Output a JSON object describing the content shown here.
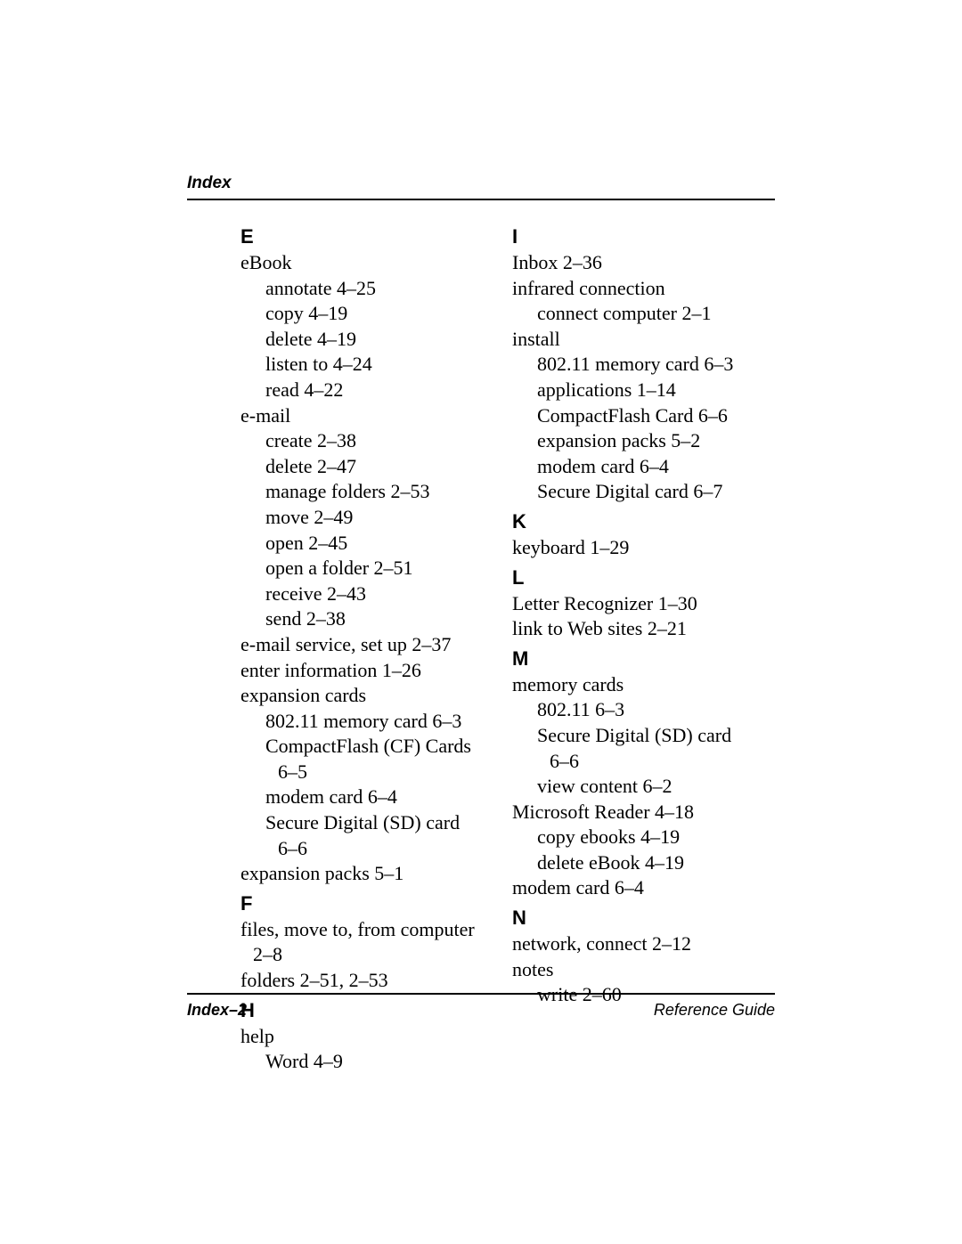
{
  "header": "Index",
  "footer_left": "Index–2",
  "footer_right": "Reference Guide",
  "left": [
    {
      "type": "letter",
      "text": "E"
    },
    {
      "type": "entry",
      "text": "eBook"
    },
    {
      "type": "l1",
      "text": "annotate 4–25"
    },
    {
      "type": "l1",
      "text": "copy 4–19"
    },
    {
      "type": "l1",
      "text": "delete 4–19"
    },
    {
      "type": "l1",
      "text": "listen to 4–24"
    },
    {
      "type": "l1",
      "text": "read 4–22"
    },
    {
      "type": "entry",
      "text": "e-mail"
    },
    {
      "type": "l1",
      "text": "create 2–38"
    },
    {
      "type": "l1",
      "text": "delete 2–47"
    },
    {
      "type": "l1",
      "text": "manage folders 2–53"
    },
    {
      "type": "l1",
      "text": "move 2–49"
    },
    {
      "type": "l1",
      "text": "open 2–45"
    },
    {
      "type": "l1",
      "text": "open a folder 2–51"
    },
    {
      "type": "l1",
      "text": "receive 2–43"
    },
    {
      "type": "l1",
      "text": "send 2–38"
    },
    {
      "type": "entry",
      "text": "e-mail service, set up 2–37"
    },
    {
      "type": "entry",
      "text": "enter information 1–26"
    },
    {
      "type": "entry",
      "text": "expansion cards"
    },
    {
      "type": "l1",
      "text": "802.11 memory card 6–3"
    },
    {
      "type": "l1",
      "text": "CompactFlash (CF) Cards"
    },
    {
      "type": "l2",
      "text": "6–5"
    },
    {
      "type": "l1",
      "text": "modem card 6–4"
    },
    {
      "type": "l1",
      "text": "Secure Digital (SD) card"
    },
    {
      "type": "l2",
      "text": "6–6"
    },
    {
      "type": "entry",
      "text": "expansion packs 5–1"
    },
    {
      "type": "letter",
      "text": "F"
    },
    {
      "type": "entry",
      "text": "files, move to, from computer"
    },
    {
      "type": "l2p",
      "text": "2–8"
    },
    {
      "type": "entry",
      "text": "folders 2–51, 2–53"
    },
    {
      "type": "letter",
      "text": "H"
    },
    {
      "type": "entry",
      "text": "help"
    },
    {
      "type": "l1",
      "text": "Word 4–9"
    }
  ],
  "right": [
    {
      "type": "letter",
      "text": "I"
    },
    {
      "type": "entry",
      "text": "Inbox 2–36"
    },
    {
      "type": "entry",
      "text": "infrared connection"
    },
    {
      "type": "l1",
      "text": "connect computer 2–1"
    },
    {
      "type": "entry",
      "text": "install"
    },
    {
      "type": "l1",
      "text": "802.11 memory card 6–3"
    },
    {
      "type": "l1",
      "text": "applications 1–14"
    },
    {
      "type": "l1",
      "text": "CompactFlash Card 6–6"
    },
    {
      "type": "l1",
      "text": "expansion packs 5–2"
    },
    {
      "type": "l1",
      "text": "modem card 6–4"
    },
    {
      "type": "l1",
      "text": "Secure Digital card 6–7"
    },
    {
      "type": "letter",
      "text": "K"
    },
    {
      "type": "entry",
      "text": "keyboard 1–29"
    },
    {
      "type": "letter",
      "text": "L"
    },
    {
      "type": "entry",
      "text": "Letter Recognizer 1–30"
    },
    {
      "type": "entry",
      "text": "link to Web sites 2–21"
    },
    {
      "type": "letter",
      "text": "M"
    },
    {
      "type": "entry",
      "text": "memory cards"
    },
    {
      "type": "l1",
      "text": "802.11 6–3"
    },
    {
      "type": "l1",
      "text": "Secure Digital (SD) card"
    },
    {
      "type": "l2",
      "text": "6–6"
    },
    {
      "type": "l1",
      "text": "view content 6–2"
    },
    {
      "type": "entry",
      "text": "Microsoft Reader 4–18"
    },
    {
      "type": "l1",
      "text": "copy ebooks 4–19"
    },
    {
      "type": "l1",
      "text": "delete eBook 4–19"
    },
    {
      "type": "entry",
      "text": "modem card 6–4"
    },
    {
      "type": "letter",
      "text": "N"
    },
    {
      "type": "entry",
      "text": "network, connect 2–12"
    },
    {
      "type": "entry",
      "text": "notes"
    },
    {
      "type": "l1",
      "text": "write 2–60"
    }
  ]
}
